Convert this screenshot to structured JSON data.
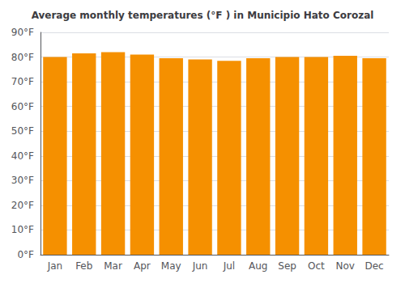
{
  "chart_data": {
    "type": "bar",
    "title": "Average monthly temperatures (°F ) in Municipio Hato Corozal",
    "categories": [
      "Jan",
      "Feb",
      "Mar",
      "Apr",
      "May",
      "Jun",
      "Jul",
      "Aug",
      "Sep",
      "Oct",
      "Nov",
      "Dec"
    ],
    "values": [
      80,
      81.5,
      82,
      81,
      79.5,
      79,
      78.5,
      79.5,
      80,
      80,
      80.5,
      79.5
    ],
    "color": "#F59000",
    "ylim": [
      0,
      90
    ],
    "yticks": [
      {
        "value": 0,
        "label": "0°F"
      },
      {
        "value": 10,
        "label": "10°F"
      },
      {
        "value": 20,
        "label": "20°F"
      },
      {
        "value": 30,
        "label": "30°F"
      },
      {
        "value": 40,
        "label": "40°F"
      },
      {
        "value": 50,
        "label": "50°F"
      },
      {
        "value": 60,
        "label": "60°F"
      },
      {
        "value": 70,
        "label": "70°F"
      },
      {
        "value": 80,
        "label": "80°F"
      },
      {
        "value": 90,
        "label": "90°F"
      }
    ],
    "grid": true
  }
}
